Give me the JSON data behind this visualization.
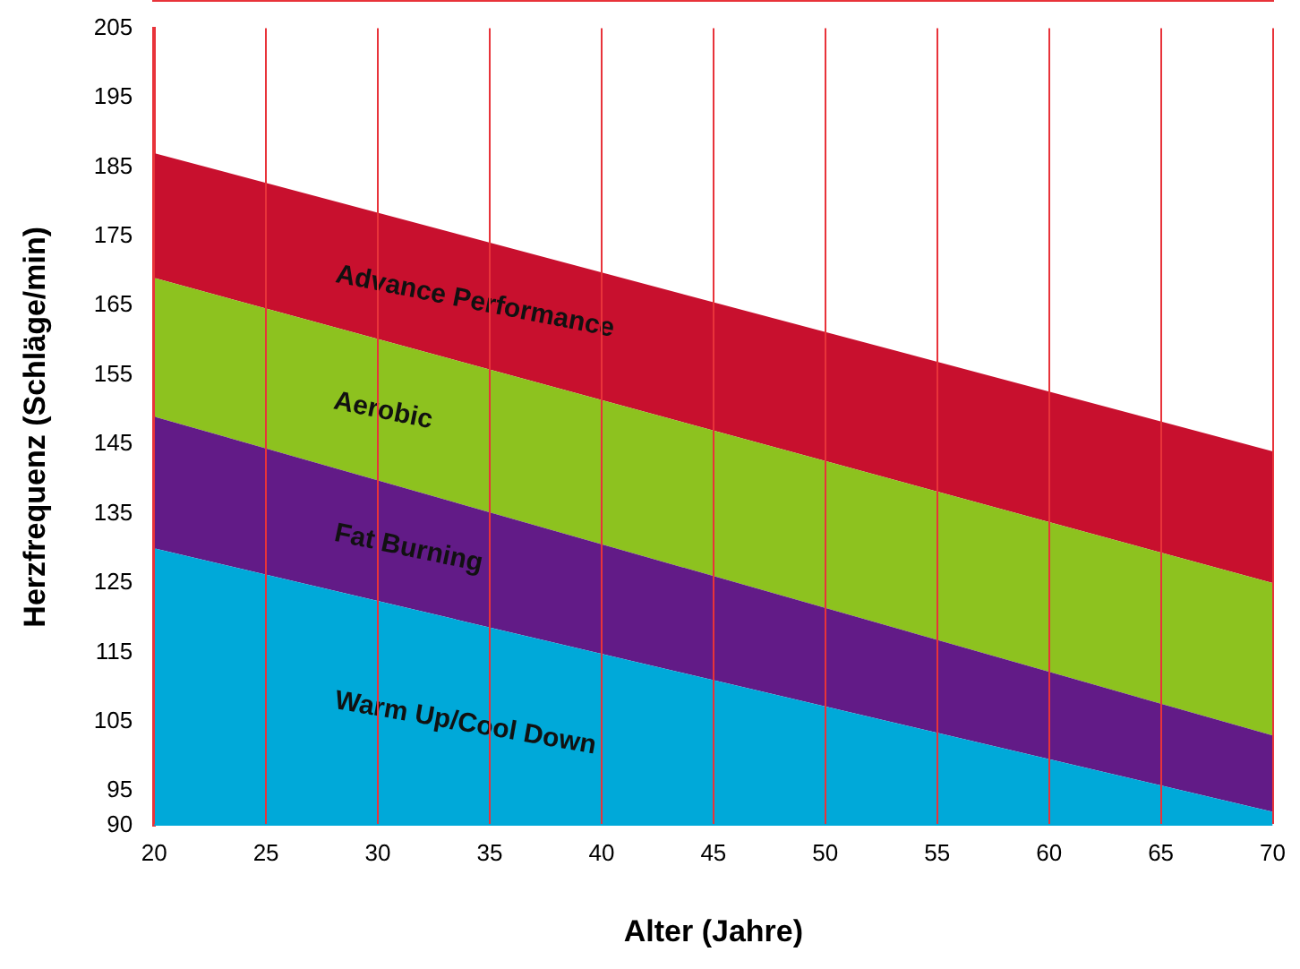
{
  "chart_data": {
    "type": "area",
    "xlabel": "Alter (Jahre)",
    "ylabel": "Herzfrequenz (Schläge/min)",
    "x": [
      20,
      70
    ],
    "series": [
      {
        "name": "Warm Up/Cool Down",
        "color": "#00a9d9",
        "values": [
          130,
          92
        ]
      },
      {
        "name": "Fat Burning",
        "color": "#621b87",
        "values": [
          149,
          103
        ]
      },
      {
        "name": "Aerobic",
        "color": "#8dc21f",
        "values": [
          169,
          125
        ]
      },
      {
        "name": "Advance Performance",
        "color": "#c8102e",
        "values": [
          187,
          144
        ]
      }
    ],
    "xlim": [
      20,
      70
    ],
    "xticks": [
      20,
      25,
      30,
      35,
      40,
      45,
      50,
      55,
      60,
      65,
      70
    ],
    "ylim": [
      90,
      205
    ],
    "yticks": [
      90,
      95,
      105,
      115,
      125,
      135,
      145,
      155,
      165,
      175,
      185,
      195,
      205
    ],
    "grid": "x",
    "legend": false
  }
}
